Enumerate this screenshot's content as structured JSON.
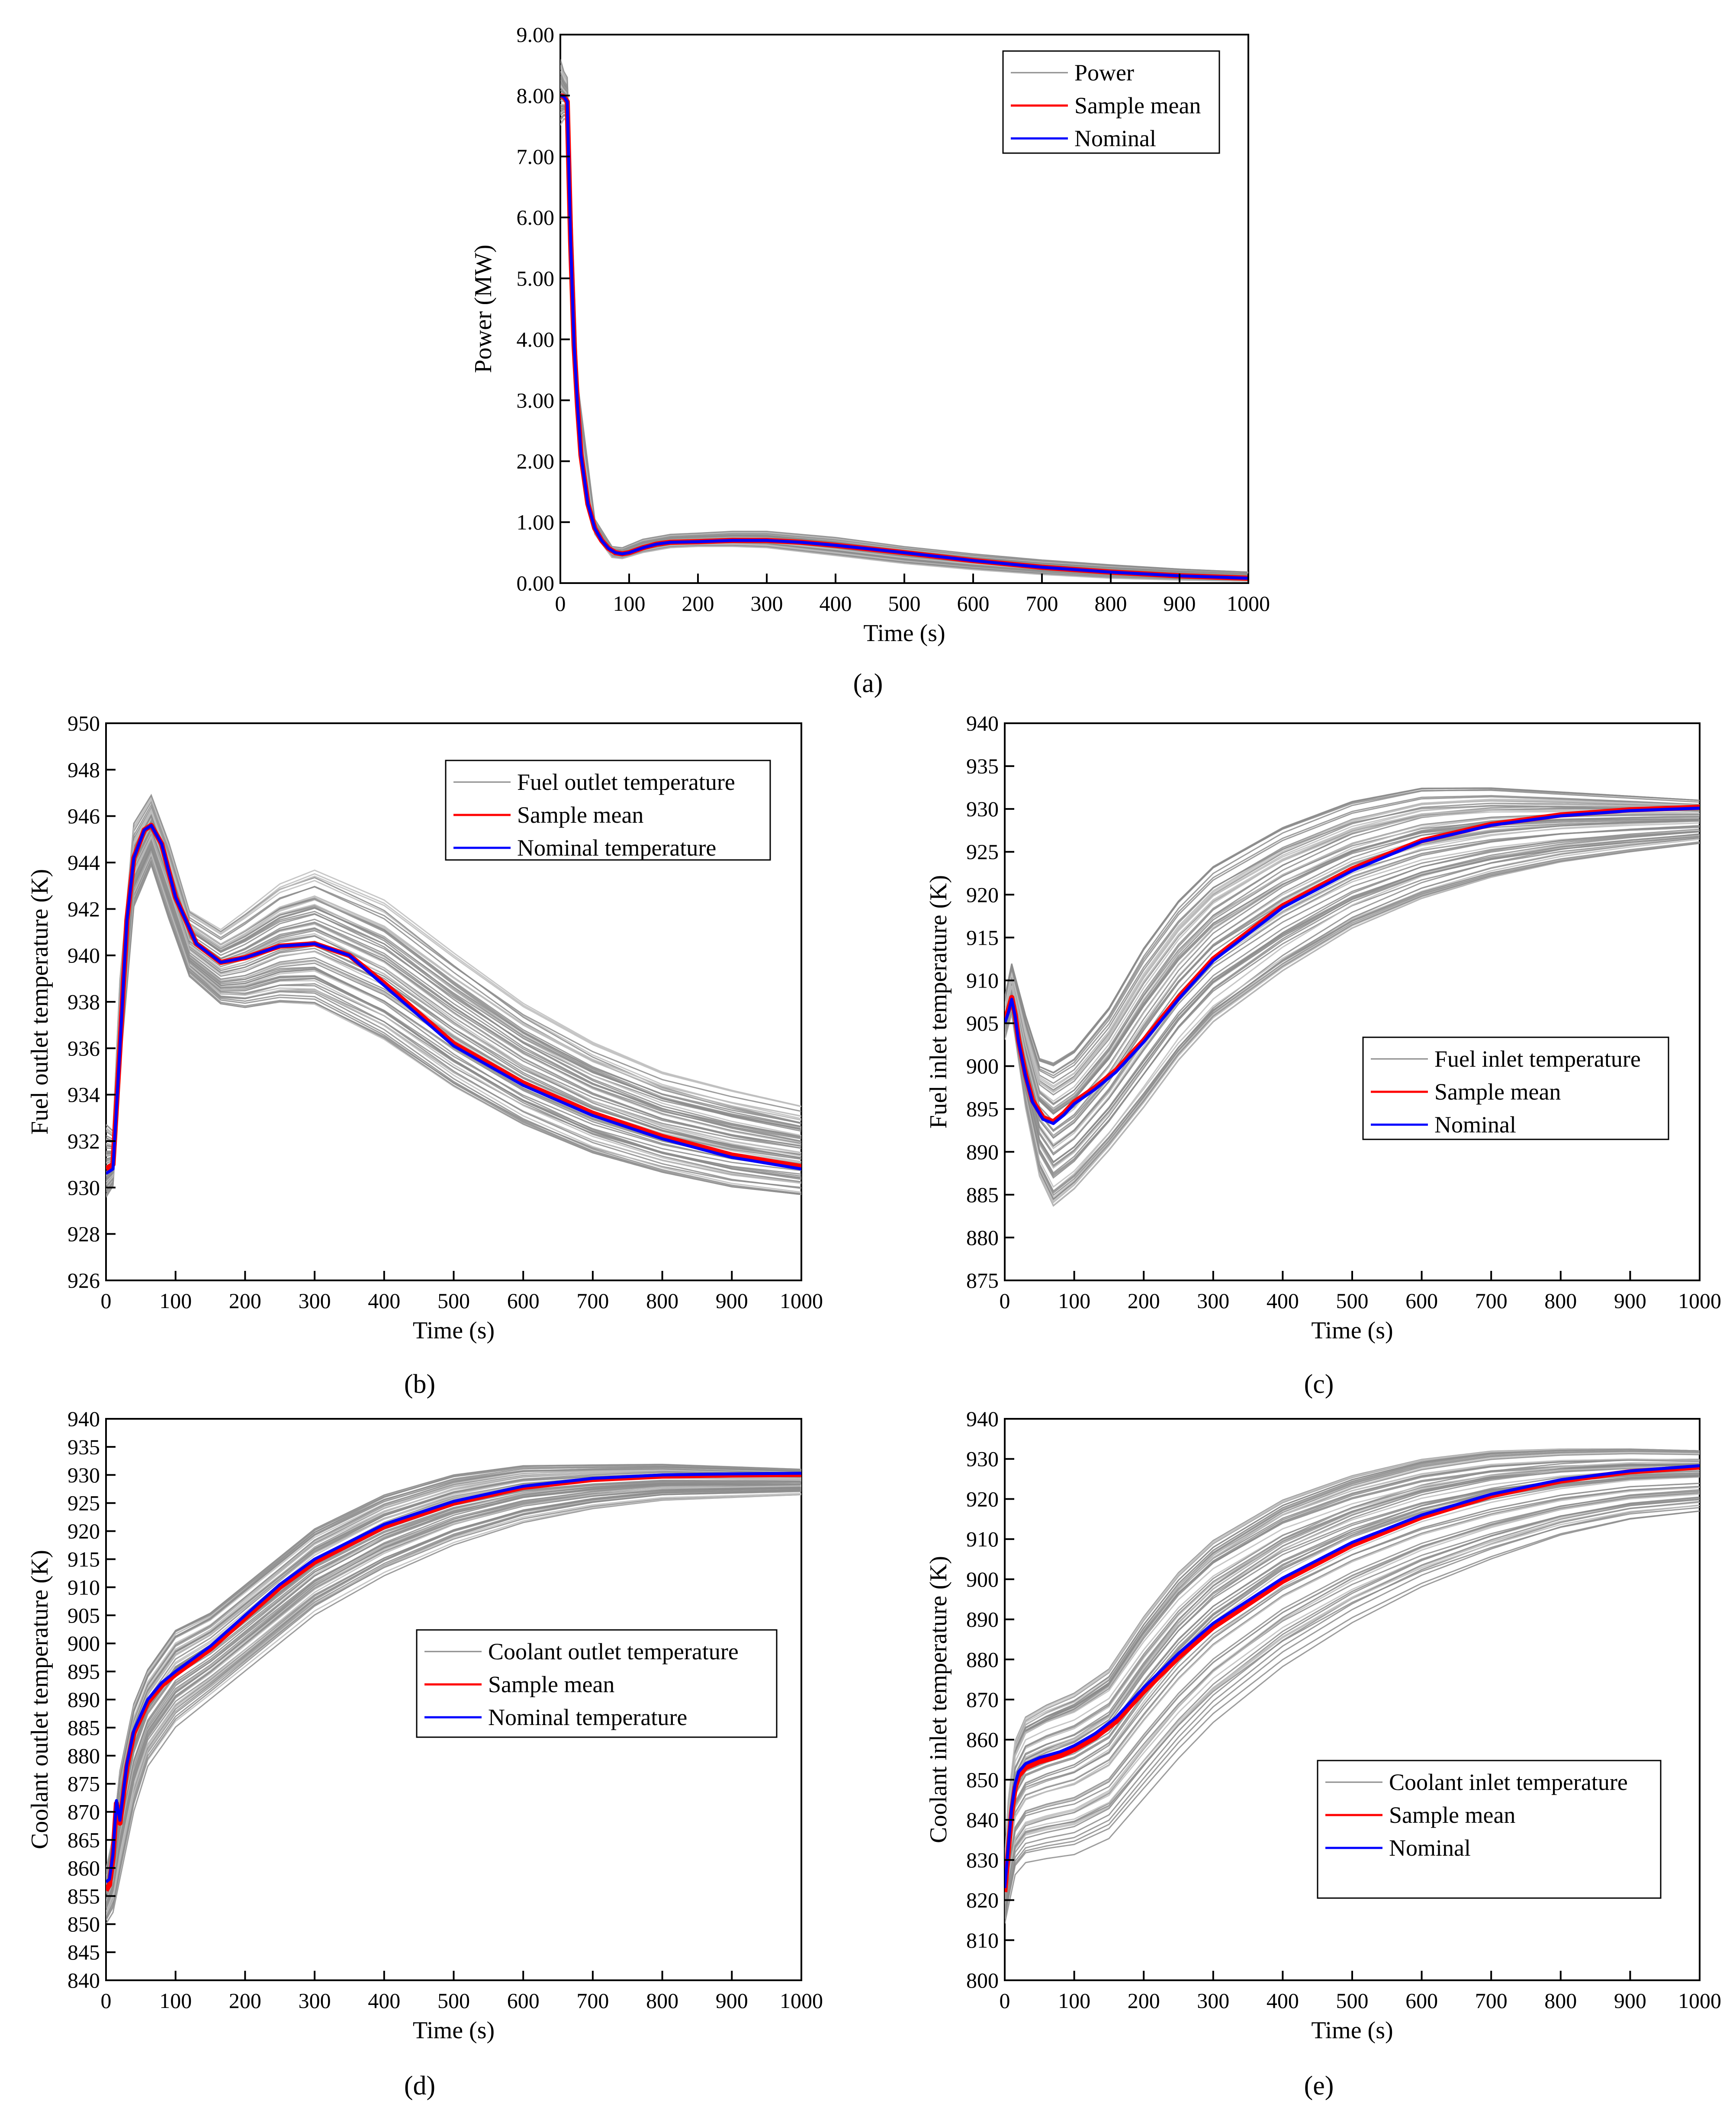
{
  "colors": {
    "samples": "#8c8c8c",
    "samples_light": "#bdbdbd",
    "mean": "#ff0000",
    "nominal": "#0000ff",
    "axis": "#000000"
  },
  "chart_data": [
    {
      "id": "a",
      "type": "line",
      "caption": "(a)",
      "xlabel": "Time (s)",
      "ylabel": "Power (MW)",
      "xlim": [
        0,
        1000
      ],
      "ylim": [
        0,
        9
      ],
      "xticks": [
        0,
        100,
        200,
        300,
        400,
        500,
        600,
        700,
        800,
        900,
        1000
      ],
      "yticks": [
        0,
        1,
        2,
        3,
        4,
        5,
        6,
        7,
        8,
        9
      ],
      "ytick_labels": [
        "0.00",
        "1.00",
        "2.00",
        "3.00",
        "4.00",
        "5.00",
        "6.00",
        "7.00",
        "8.00",
        "9.00"
      ],
      "legend": [
        "Power",
        "Sample mean",
        "Nominal"
      ],
      "legend_position": "top-right",
      "band": {
        "x": [
          0,
          5,
          10,
          25,
          50,
          75,
          90,
          120,
          160,
          200,
          250,
          300,
          400,
          500,
          600,
          700,
          800,
          900,
          1000
        ],
        "low": [
          7.5,
          7.6,
          7.6,
          2.7,
          0.8,
          0.42,
          0.4,
          0.5,
          0.58,
          0.6,
          0.6,
          0.58,
          0.45,
          0.32,
          0.22,
          0.14,
          0.08,
          0.05,
          0.03
        ],
        "high": [
          8.6,
          8.4,
          8.3,
          3.3,
          1.05,
          0.6,
          0.58,
          0.72,
          0.8,
          0.82,
          0.85,
          0.85,
          0.75,
          0.6,
          0.48,
          0.38,
          0.3,
          0.23,
          0.18
        ]
      },
      "mean": {
        "x": [
          0,
          5,
          10,
          15,
          20,
          25,
          30,
          40,
          50,
          60,
          70,
          80,
          90,
          100,
          120,
          140,
          160,
          200,
          250,
          300,
          350,
          400,
          500,
          600,
          700,
          800,
          900,
          1000
        ],
        "y": [
          8.0,
          7.98,
          7.9,
          5.6,
          3.9,
          2.9,
          2.1,
          1.3,
          0.9,
          0.7,
          0.57,
          0.5,
          0.48,
          0.5,
          0.58,
          0.64,
          0.67,
          0.68,
          0.7,
          0.7,
          0.67,
          0.62,
          0.5,
          0.37,
          0.26,
          0.18,
          0.12,
          0.08
        ]
      },
      "nominal": {
        "x": [
          0,
          5,
          10,
          15,
          20,
          25,
          30,
          40,
          50,
          60,
          70,
          80,
          90,
          100,
          120,
          140,
          160,
          200,
          250,
          300,
          350,
          400,
          500,
          600,
          700,
          800,
          900,
          1000
        ],
        "y": [
          8.0,
          7.98,
          7.9,
          5.6,
          3.9,
          2.9,
          2.1,
          1.3,
          0.9,
          0.7,
          0.57,
          0.5,
          0.48,
          0.5,
          0.58,
          0.64,
          0.67,
          0.68,
          0.7,
          0.7,
          0.67,
          0.62,
          0.5,
          0.37,
          0.26,
          0.18,
          0.12,
          0.08
        ]
      }
    },
    {
      "id": "b",
      "type": "line",
      "caption": "(b)",
      "xlabel": "Time (s)",
      "ylabel": "Fuel outlet temperature (K)",
      "xlim": [
        0,
        1000
      ],
      "ylim": [
        926,
        950
      ],
      "xticks": [
        0,
        100,
        200,
        300,
        400,
        500,
        600,
        700,
        800,
        900,
        1000
      ],
      "yticks": [
        926,
        928,
        930,
        932,
        934,
        936,
        938,
        940,
        942,
        944,
        946,
        948,
        950
      ],
      "ytick_labels": [
        "926",
        "928",
        "930",
        "932",
        "934",
        "936",
        "938",
        "940",
        "942",
        "944",
        "946",
        "948",
        "950"
      ],
      "legend": [
        "Fuel outlet temperature",
        "Sample mean",
        "Nominal temperature"
      ],
      "legend_position": "top-right",
      "band": {
        "x": [
          0,
          10,
          20,
          40,
          65,
          90,
          120,
          165,
          200,
          250,
          300,
          400,
          500,
          600,
          700,
          800,
          900,
          1000
        ],
        "low": [
          929.5,
          930.0,
          935.0,
          942.0,
          943.8,
          941.5,
          939.0,
          937.8,
          937.6,
          937.8,
          937.7,
          936.2,
          934.2,
          932.6,
          931.4,
          930.6,
          930.0,
          929.7
        ],
        "high": [
          932.8,
          932.5,
          939.0,
          945.8,
          947.0,
          945.0,
          942.0,
          941.2,
          942.0,
          943.2,
          943.8,
          942.5,
          940.2,
          938.0,
          936.3,
          935.0,
          934.2,
          933.5
        ]
      },
      "mean": {
        "x": [
          0,
          10,
          20,
          30,
          40,
          55,
          65,
          80,
          100,
          130,
          165,
          200,
          250,
          300,
          350,
          400,
          500,
          600,
          700,
          800,
          900,
          1000
        ],
        "y": [
          930.8,
          931.0,
          936.0,
          941.5,
          944.2,
          945.4,
          945.6,
          944.8,
          942.5,
          940.5,
          939.7,
          939.9,
          940.4,
          940.5,
          940.0,
          938.8,
          936.2,
          934.5,
          933.2,
          932.2,
          931.4,
          930.9
        ]
      },
      "nominal": {
        "x": [
          0,
          10,
          20,
          30,
          40,
          55,
          65,
          80,
          100,
          130,
          165,
          200,
          250,
          300,
          350,
          400,
          500,
          600,
          700,
          800,
          900,
          1000
        ],
        "y": [
          930.6,
          930.8,
          936.0,
          941.5,
          944.2,
          945.4,
          945.6,
          944.8,
          942.5,
          940.5,
          939.7,
          939.9,
          940.4,
          940.5,
          940.0,
          938.7,
          936.1,
          934.4,
          933.1,
          932.1,
          931.3,
          930.8
        ]
      }
    },
    {
      "id": "c",
      "type": "line",
      "caption": "(c)",
      "xlabel": "Time (s)",
      "ylabel": "Fuel inlet temperature (K)",
      "xlim": [
        0,
        1000
      ],
      "ylim": [
        875,
        940
      ],
      "xticks": [
        0,
        100,
        200,
        300,
        400,
        500,
        600,
        700,
        800,
        900,
        1000
      ],
      "yticks": [
        875,
        880,
        885,
        890,
        895,
        900,
        905,
        910,
        915,
        920,
        925,
        930,
        935,
        940
      ],
      "ytick_labels": [
        "875",
        "880",
        "885",
        "890",
        "895",
        "900",
        "905",
        "910",
        "915",
        "920",
        "925",
        "930",
        "935",
        "940"
      ],
      "legend": [
        "Fuel inlet temperature",
        "Sample mean",
        "Nominal"
      ],
      "legend_position": "center-right",
      "band": {
        "x": [
          0,
          10,
          30,
          50,
          70,
          100,
          150,
          200,
          250,
          300,
          400,
          500,
          600,
          700,
          800,
          900,
          1000
        ],
        "low": [
          903.0,
          906.0,
          895.0,
          887.0,
          883.5,
          885.5,
          890.0,
          895.0,
          900.5,
          905.0,
          911.0,
          916.0,
          919.5,
          922.0,
          923.8,
          925.0,
          926.0
        ],
        "high": [
          908.0,
          912.0,
          906.0,
          901.0,
          900.5,
          902.0,
          907.0,
          914.0,
          919.5,
          923.5,
          928.0,
          931.0,
          932.5,
          932.5,
          932.0,
          931.5,
          931.0
        ]
      },
      "mean": {
        "x": [
          0,
          5,
          10,
          15,
          20,
          30,
          40,
          55,
          70,
          85,
          100,
          130,
          160,
          200,
          250,
          300,
          400,
          500,
          600,
          700,
          800,
          900,
          1000
        ],
        "y": [
          905.5,
          906.5,
          908.0,
          906.0,
          903.0,
          899.0,
          896.0,
          894.0,
          893.5,
          894.5,
          895.8,
          897.5,
          899.5,
          903.0,
          908.0,
          912.5,
          918.7,
          923.0,
          926.3,
          928.2,
          929.3,
          929.9,
          930.2
        ]
      },
      "nominal": {
        "x": [
          0,
          5,
          10,
          15,
          20,
          30,
          40,
          55,
          70,
          85,
          100,
          130,
          160,
          200,
          250,
          300,
          400,
          500,
          600,
          700,
          800,
          900,
          1000
        ],
        "y": [
          905.0,
          906.2,
          907.8,
          905.8,
          902.8,
          898.8,
          895.8,
          893.8,
          893.3,
          894.3,
          895.6,
          897.3,
          899.3,
          902.8,
          907.8,
          912.3,
          918.5,
          922.8,
          926.2,
          928.1,
          929.2,
          929.8,
          930.1
        ]
      }
    },
    {
      "id": "d",
      "type": "line",
      "caption": "(d)",
      "xlabel": "Time (s)",
      "ylabel": "Coolant outlet temperature (K)",
      "xlim": [
        0,
        1000
      ],
      "ylim": [
        840,
        940
      ],
      "xticks": [
        0,
        100,
        200,
        300,
        400,
        500,
        600,
        700,
        800,
        900,
        1000
      ],
      "yticks": [
        840,
        845,
        850,
        855,
        860,
        865,
        870,
        875,
        880,
        885,
        890,
        895,
        900,
        905,
        910,
        915,
        920,
        925,
        930,
        935,
        940
      ],
      "ytick_labels": [
        "840",
        "845",
        "850",
        "855",
        "860",
        "865",
        "870",
        "875",
        "880",
        "885",
        "890",
        "895",
        "900",
        "905",
        "910",
        "915",
        "920",
        "925",
        "930",
        "935",
        "940"
      ],
      "legend": [
        "Coolant outlet temperature",
        "Sample mean",
        "Nominal temperature"
      ],
      "legend_position": "center-right",
      "band": {
        "x": [
          0,
          10,
          20,
          40,
          60,
          100,
          150,
          200,
          300,
          400,
          500,
          600,
          700,
          800,
          900,
          1000
        ],
        "low": [
          850.0,
          852.0,
          858.0,
          870.0,
          878.0,
          885.0,
          890.0,
          895.0,
          905.0,
          912.0,
          917.5,
          921.5,
          924.0,
          925.5,
          926.0,
          926.5
        ],
        "high": [
          860.0,
          866.0,
          878.0,
          890.0,
          896.0,
          903.0,
          906.0,
          911.0,
          921.0,
          927.0,
          930.5,
          932.0,
          932.0,
          932.0,
          931.5,
          931.0
        ]
      },
      "mean": {
        "x": [
          0,
          5,
          10,
          15,
          20,
          30,
          40,
          60,
          80,
          100,
          150,
          200,
          250,
          300,
          400,
          500,
          600,
          700,
          800,
          900,
          1000
        ],
        "y": [
          856.0,
          857.0,
          862.0,
          871.5,
          868.0,
          878.0,
          884.0,
          889.5,
          892.5,
          894.5,
          899.0,
          904.5,
          910.0,
          914.5,
          920.8,
          925.0,
          927.8,
          929.2,
          929.8,
          930.0,
          930.1
        ]
      },
      "nominal": {
        "x": [
          0,
          5,
          10,
          15,
          20,
          30,
          40,
          60,
          80,
          100,
          150,
          200,
          250,
          300,
          400,
          500,
          600,
          700,
          800,
          900,
          1000
        ],
        "y": [
          857.5,
          858.0,
          862.5,
          872.0,
          868.5,
          878.5,
          884.5,
          890.0,
          893.0,
          895.0,
          899.5,
          905.0,
          910.5,
          915.0,
          921.2,
          925.3,
          928.0,
          929.4,
          930.0,
          930.2,
          930.3
        ]
      }
    },
    {
      "id": "e",
      "type": "line",
      "caption": "(e)",
      "xlabel": "Time (s)",
      "ylabel": "Coolant inlet temperature (K)",
      "xlim": [
        0,
        1000
      ],
      "ylim": [
        800,
        940
      ],
      "xticks": [
        0,
        100,
        200,
        300,
        400,
        500,
        600,
        700,
        800,
        900,
        1000
      ],
      "yticks": [
        800,
        810,
        820,
        830,
        840,
        850,
        860,
        870,
        880,
        890,
        900,
        910,
        920,
        930,
        940
      ],
      "ytick_labels": [
        "800",
        "810",
        "820",
        "830",
        "840",
        "850",
        "860",
        "870",
        "880",
        "890",
        "900",
        "910",
        "920",
        "930",
        "940"
      ],
      "legend": [
        "Coolant inlet temperature",
        "Sample mean",
        "Nominal"
      ],
      "legend_position": "bottom-right",
      "band": {
        "x": [
          0,
          5,
          15,
          30,
          60,
          100,
          150,
          200,
          250,
          300,
          400,
          500,
          600,
          700,
          800,
          900,
          1000
        ],
        "low": [
          814.0,
          818.0,
          826.0,
          829.0,
          830.0,
          831.0,
          835.0,
          845.0,
          855.0,
          864.0,
          878.0,
          889.0,
          898.0,
          905.0,
          911.0,
          915.0,
          917.0
        ],
        "high": [
          830.0,
          845.0,
          860.0,
          866.0,
          869.0,
          872.0,
          878.0,
          891.0,
          902.0,
          910.0,
          920.0,
          926.0,
          930.0,
          932.0,
          932.5,
          932.5,
          932.0
        ]
      },
      "mean": {
        "x": [
          0,
          5,
          10,
          15,
          20,
          30,
          50,
          80,
          100,
          130,
          160,
          200,
          250,
          300,
          400,
          500,
          600,
          700,
          800,
          900,
          1000
        ],
        "y": [
          822.0,
          832.0,
          842.0,
          848.0,
          851.0,
          853.0,
          854.5,
          856.0,
          857.5,
          860.5,
          864.5,
          872.0,
          880.5,
          888.0,
          899.5,
          908.5,
          915.5,
          920.8,
          924.5,
          926.8,
          928.0
        ]
      },
      "nominal": {
        "x": [
          0,
          5,
          10,
          15,
          20,
          30,
          50,
          80,
          100,
          130,
          160,
          200,
          250,
          300,
          400,
          500,
          600,
          700,
          800,
          900,
          1000
        ],
        "y": [
          823.0,
          833.0,
          843.0,
          849.0,
          852.0,
          854.0,
          855.5,
          857.0,
          858.5,
          861.5,
          865.5,
          873.0,
          881.5,
          889.0,
          900.3,
          909.2,
          916.0,
          921.2,
          924.8,
          927.0,
          928.3
        ]
      }
    }
  ]
}
